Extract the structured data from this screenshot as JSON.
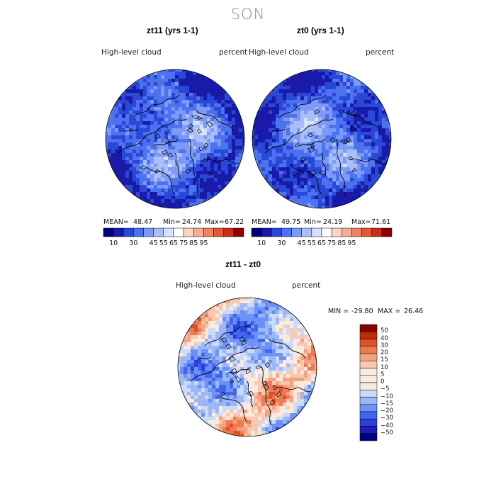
{
  "title": "SON",
  "colors": {
    "abs_scale": [
      "#00007f",
      "#1a1aa8",
      "#2a48d8",
      "#4d72f0",
      "#7c9af6",
      "#aabff8",
      "#d6e2fb",
      "#ffffff",
      "#fbd5c2",
      "#f6ad92",
      "#ef8362",
      "#e55834",
      "#c82e14",
      "#8f0000"
    ],
    "diff_scale": [
      "#000080",
      "#1d1db0",
      "#2a3fdc",
      "#3e66ef",
      "#6d91f5",
      "#9cb7f7",
      "#cbdaf9",
      "#fbeade",
      "#f9c8ae",
      "#f5a281",
      "#ee7a53",
      "#e05025",
      "#c02a0a",
      "#8a0000"
    ],
    "ocean_blue": "#3e66ef",
    "land_line": "#000000"
  },
  "maps": [
    {
      "name": "zt11",
      "title": "zt11 (yrs 1-1)",
      "variable": "High-level cloud",
      "units": "percent",
      "stats": {
        "mean": "48.47",
        "min": "24.74",
        "max": "67.22"
      },
      "mean_label": "MEAN=",
      "min_label": "Min=",
      "max_label": "Max="
    },
    {
      "name": "zt0",
      "title": "zt0 (yrs 1-1)",
      "variable": "High-level cloud",
      "units": "percent",
      "stats": {
        "mean": "49.75",
        "min": "24.19",
        "max": "71.61"
      },
      "mean_label": "MEAN=",
      "min_label": "Min=",
      "max_label": "Max="
    }
  ],
  "abs_colorbar_ticks": [
    "10",
    "30",
    "45",
    "55",
    "65",
    "75",
    "85",
    "95"
  ],
  "diff": {
    "title": "zt11 - zt0",
    "variable": "High-level cloud",
    "units": "percent",
    "min_label": "MIN =",
    "min": "-29.80",
    "max_label": "MAX =",
    "max": "26.46",
    "colorbar_ticks": [
      "50",
      "40",
      "30",
      "20",
      "15",
      "10",
      "5",
      "0",
      "−5",
      "−10",
      "−15",
      "−20",
      "−30",
      "−40",
      "−50"
    ]
  }
}
